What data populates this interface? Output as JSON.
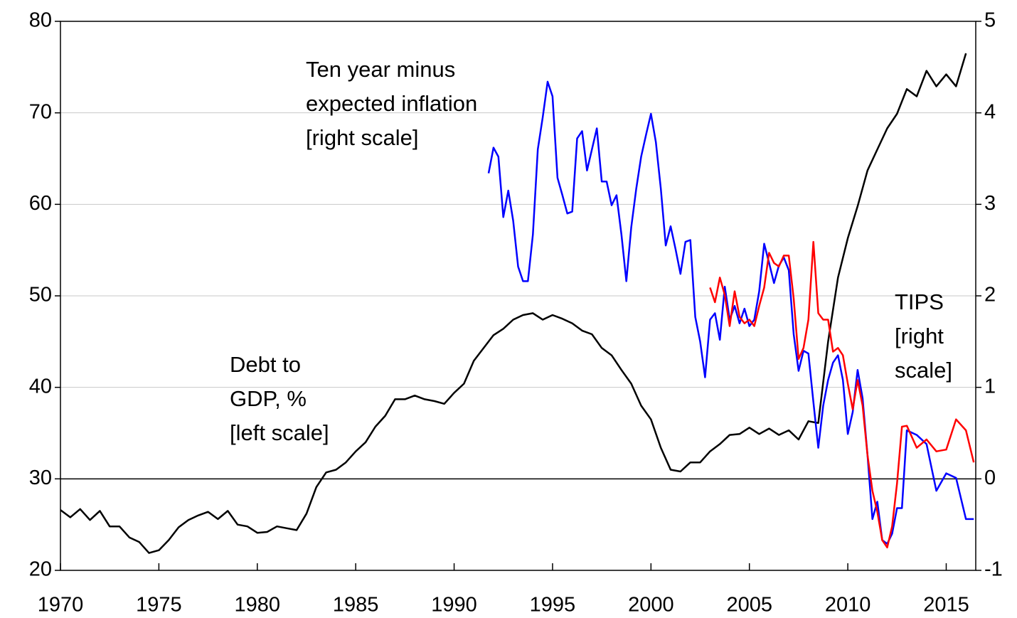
{
  "chart_data": {
    "type": "line",
    "xlim": [
      1970,
      2016.5
    ],
    "xticks": [
      1970,
      1975,
      1980,
      1985,
      1990,
      1995,
      2000,
      2005,
      2010,
      2015
    ],
    "ylim": [
      20,
      80
    ],
    "yticks": [
      20,
      30,
      40,
      50,
      60,
      70,
      80
    ],
    "y2lim": [
      -1,
      5
    ],
    "y2ticks": [
      -1,
      0,
      1,
      2,
      3,
      4,
      5
    ],
    "grid": true,
    "series": [
      {
        "color": "#000000",
        "axis": "y",
        "x": [
          1970,
          1970.5,
          1971,
          1971.5,
          1972,
          1972.5,
          1973,
          1973.5,
          1974,
          1974.5,
          1975,
          1975.5,
          1976,
          1976.5,
          1977,
          1977.5,
          1978,
          1978.5,
          1979,
          1979.5,
          1980,
          1980.5,
          1981,
          1981.5,
          1982,
          1982.5,
          1983,
          1983.5,
          1984,
          1984.5,
          1985,
          1985.5,
          1986,
          1986.5,
          1987,
          1987.5,
          1988,
          1988.5,
          1989,
          1989.5,
          1990,
          1990.5,
          1991,
          1991.5,
          1992,
          1992.5,
          1993,
          1993.5,
          1994,
          1994.5,
          1995,
          1995.5,
          1996,
          1996.5,
          1997,
          1997.5,
          1998,
          1998.5,
          1999,
          1999.5,
          2000,
          2000.5,
          2001,
          2001.5,
          2002,
          2002.5,
          2003,
          2003.5,
          2004,
          2004.5,
          2005,
          2005.5,
          2006,
          2006.5,
          2007,
          2007.5,
          2008,
          2008.5,
          2009,
          2009.5,
          2010,
          2010.5,
          2011,
          2011.5,
          2012,
          2012.5,
          2013,
          2013.5,
          2014,
          2014.5,
          2015,
          2015.5,
          2016
        ],
        "values": [
          26.6,
          25.8,
          26.7,
          25.5,
          26.5,
          24.8,
          24.8,
          23.6,
          23.1,
          21.9,
          22.2,
          23.3,
          24.7,
          25.5,
          26.0,
          26.4,
          25.6,
          26.5,
          25.0,
          24.8,
          24.1,
          24.2,
          24.8,
          24.6,
          24.4,
          26.2,
          29.1,
          30.7,
          31.0,
          31.8,
          33.0,
          34.0,
          35.7,
          36.9,
          38.7,
          38.7,
          39.1,
          38.7,
          38.5,
          38.2,
          39.4,
          40.4,
          42.9,
          44.3,
          45.7,
          46.4,
          47.4,
          47.9,
          48.1,
          47.4,
          47.9,
          47.5,
          47.0,
          46.2,
          45.8,
          44.3,
          43.5,
          41.9,
          40.4,
          38.0,
          36.5,
          33.4,
          31.0,
          30.8,
          31.8,
          31.8,
          33.0,
          33.8,
          34.8,
          34.9,
          35.6,
          34.9,
          35.5,
          34.8,
          35.3,
          34.3,
          36.3,
          36.1,
          45.0,
          52.0,
          56.3,
          59.8,
          63.7,
          66.0,
          68.3,
          69.9,
          72.6,
          71.8,
          74.6,
          72.9,
          74.2,
          72.9,
          76.5
        ]
      },
      {
        "color": "#0000ff",
        "axis": "y2",
        "x": [
          1991.75,
          1992,
          1992.25,
          1992.5,
          1992.75,
          1993,
          1993.25,
          1993.5,
          1993.75,
          1994,
          1994.25,
          1994.5,
          1994.75,
          1995,
          1995.25,
          1995.5,
          1995.75,
          1996,
          1996.25,
          1996.5,
          1996.75,
          1997,
          1997.25,
          1997.5,
          1997.75,
          1998,
          1998.25,
          1998.5,
          1998.75,
          1999,
          1999.25,
          1999.5,
          1999.75,
          2000,
          2000.25,
          2000.5,
          2000.75,
          2001,
          2001.25,
          2001.5,
          2001.75,
          2002,
          2002.25,
          2002.5,
          2002.75,
          2003,
          2003.25,
          2003.5,
          2003.75,
          2004,
          2004.25,
          2004.5,
          2004.75,
          2005,
          2005.25,
          2005.5,
          2005.75,
          2006,
          2006.25,
          2006.5,
          2006.75,
          2007,
          2007.25,
          2007.5,
          2007.75,
          2008,
          2008.25,
          2008.5,
          2008.75,
          2009,
          2009.25,
          2009.5,
          2009.75,
          2010,
          2010.25,
          2010.5,
          2010.75,
          2011,
          2011.25,
          2011.5,
          2011.75,
          2012,
          2012.25,
          2012.5,
          2012.75,
          2013,
          2013.5,
          2014,
          2014.5,
          2015,
          2015.5,
          2016,
          2016.4
        ],
        "values": [
          3.34,
          3.62,
          3.52,
          2.86,
          3.15,
          2.82,
          2.32,
          2.16,
          2.16,
          2.67,
          3.6,
          3.95,
          4.34,
          4.18,
          3.29,
          3.1,
          2.9,
          2.92,
          3.72,
          3.8,
          3.37,
          3.6,
          3.83,
          3.25,
          3.25,
          2.99,
          3.1,
          2.67,
          2.16,
          2.75,
          3.17,
          3.52,
          3.76,
          3.99,
          3.68,
          3.17,
          2.55,
          2.76,
          2.51,
          2.24,
          2.59,
          2.61,
          1.77,
          1.5,
          1.11,
          1.74,
          1.81,
          1.52,
          2.1,
          1.74,
          1.89,
          1.7,
          1.86,
          1.67,
          1.74,
          2.05,
          2.57,
          2.36,
          2.14,
          2.33,
          2.42,
          2.28,
          1.58,
          1.18,
          1.4,
          1.37,
          0.84,
          0.34,
          0.8,
          1.08,
          1.27,
          1.35,
          1.08,
          0.49,
          0.73,
          1.19,
          0.88,
          0.26,
          -0.44,
          -0.25,
          -0.67,
          -0.71,
          -0.6,
          -0.32,
          -0.32,
          0.53,
          0.48,
          0.38,
          -0.13,
          0.06,
          0.01,
          -0.44,
          -0.44
        ]
      },
      {
        "color": "#ff0000",
        "axis": "y2",
        "x": [
          2003,
          2003.25,
          2003.5,
          2003.75,
          2004,
          2004.25,
          2004.5,
          2004.75,
          2005,
          2005.25,
          2005.5,
          2005.75,
          2006,
          2006.25,
          2006.5,
          2006.75,
          2007,
          2007.25,
          2007.5,
          2007.75,
          2008,
          2008.25,
          2008.5,
          2008.75,
          2009,
          2009.25,
          2009.5,
          2009.75,
          2010,
          2010.25,
          2010.5,
          2010.75,
          2011,
          2011.25,
          2011.5,
          2011.75,
          2012,
          2012.25,
          2012.5,
          2012.75,
          2013,
          2013.5,
          2014,
          2014.5,
          2015,
          2015.5,
          2016,
          2016.4
        ],
        "values": [
          2.09,
          1.93,
          2.2,
          2.01,
          1.67,
          2.05,
          1.77,
          1.7,
          1.74,
          1.67,
          1.89,
          2.09,
          2.47,
          2.36,
          2.32,
          2.44,
          2.44,
          1.97,
          1.31,
          1.43,
          1.74,
          2.59,
          1.81,
          1.74,
          1.74,
          1.39,
          1.43,
          1.35,
          1.04,
          0.76,
          1.08,
          0.8,
          0.26,
          -0.13,
          -0.36,
          -0.67,
          -0.75,
          -0.52,
          -0.05,
          0.57,
          0.58,
          0.34,
          0.43,
          0.3,
          0.32,
          0.65,
          0.53,
          0.18
        ]
      }
    ],
    "annotations": [
      {
        "text": [
          "Ten year minus",
          "expected inflation",
          "[right scale]"
        ],
        "color": "#0000ff"
      },
      {
        "text": [
          "Debt to",
          "GDP, %",
          "[left scale]"
        ],
        "color": "#000000"
      },
      {
        "text": [
          "TIPS",
          "[right",
          "scale]"
        ],
        "color": "#ff0000"
      }
    ]
  }
}
